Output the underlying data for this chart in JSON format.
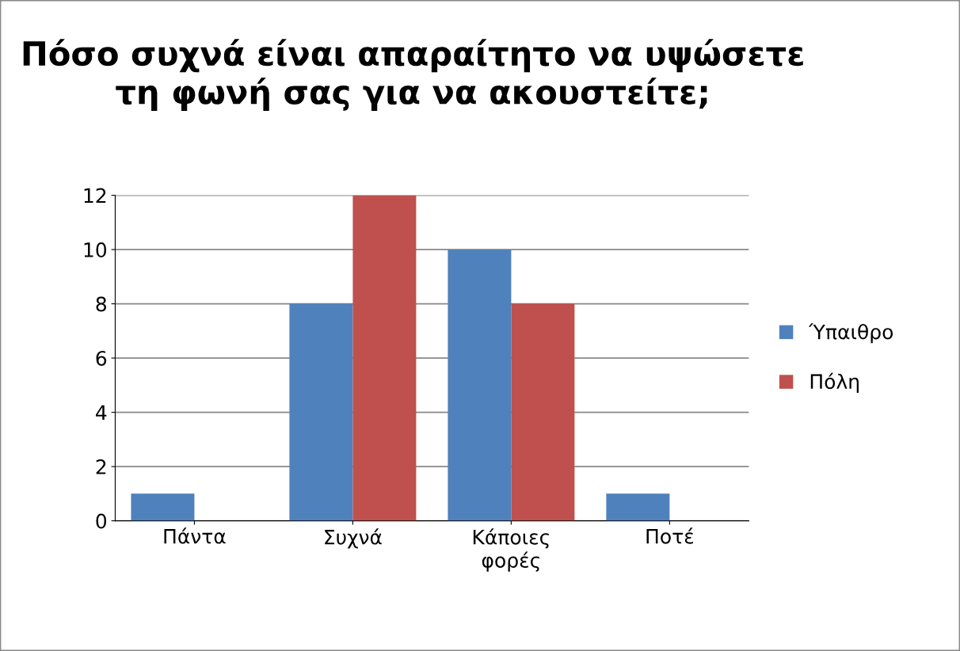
{
  "chart_data": {
    "type": "bar",
    "title": "Πόσο συχνά είναι απαραίτητο να υψώσετε τη φωνή σας για να ακουστείτε;",
    "categories": [
      "Πάντα",
      "Συχνά",
      "Κάποιες φορές",
      "Ποτέ"
    ],
    "series": [
      {
        "name": "Ύπαιθρο",
        "color": "#4f81bd",
        "values": [
          1,
          8,
          10,
          1
        ]
      },
      {
        "name": "Πόλη",
        "color": "#c0504d",
        "values": [
          0,
          12,
          8,
          0
        ]
      }
    ],
    "ylim": [
      0,
      12
    ],
    "yticks": [
      0,
      2,
      4,
      6,
      8,
      10,
      12
    ],
    "grid": "y",
    "legend": "right"
  }
}
